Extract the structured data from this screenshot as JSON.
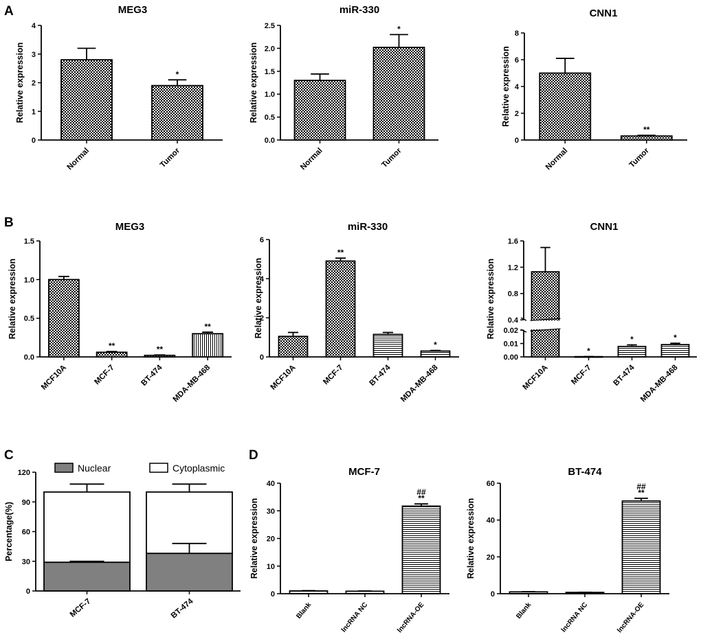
{
  "panel_labels": [
    "A",
    "B",
    "C",
    "D"
  ],
  "chart_data": [
    {
      "id": "a1",
      "type": "bar",
      "title": "MEG3",
      "ylabel": "Relative expression",
      "ylim": [
        0,
        4
      ],
      "yticks": [
        "0",
        "1",
        "2",
        "3",
        "4"
      ],
      "categories": [
        "Normal",
        "Tumor"
      ],
      "values": [
        2.8,
        1.9
      ],
      "errors": [
        0.4,
        0.2
      ],
      "labels": [
        "",
        "*"
      ],
      "fills": [
        "check",
        "check"
      ]
    },
    {
      "id": "a2",
      "type": "bar",
      "title": "miR-330",
      "ylabel": "Relative expression",
      "ylim": [
        0,
        2.5
      ],
      "yticks": [
        "0.0",
        "0.5",
        "1.0",
        "1.5",
        "2.0",
        "2.5"
      ],
      "categories": [
        "Normal",
        "Tumor"
      ],
      "values": [
        1.3,
        2.02
      ],
      "errors": [
        0.14,
        0.28
      ],
      "labels": [
        "",
        "*"
      ],
      "fills": [
        "check",
        "check"
      ]
    },
    {
      "id": "a3",
      "type": "bar",
      "title": "CNN1",
      "ylabel": "Relative expression",
      "ylim": [
        0,
        8
      ],
      "yticks": [
        "0",
        "2",
        "4",
        "6",
        "8"
      ],
      "categories": [
        "Normal",
        "Tumor"
      ],
      "values": [
        5.0,
        0.3
      ],
      "errors": [
        1.1,
        0.05
      ],
      "labels": [
        "",
        "**"
      ],
      "fills": [
        "check",
        "check"
      ]
    },
    {
      "id": "b1",
      "type": "bar",
      "title": "MEG3",
      "ylabel": "Relative expression",
      "ylim": [
        0,
        1.5
      ],
      "yticks": [
        "0.0",
        "0.5",
        "1.0",
        "1.5"
      ],
      "categories": [
        "MCF10A",
        "MCF-7",
        "BT-474",
        "MDA-MB-468"
      ],
      "values": [
        1.0,
        0.06,
        0.02,
        0.3
      ],
      "errors": [
        0.04,
        0.01,
        0.005,
        0.02
      ],
      "labels": [
        "",
        "**",
        "**",
        "**"
      ],
      "fills": [
        "check",
        "check",
        "check",
        "vline"
      ]
    },
    {
      "id": "b2",
      "type": "bar",
      "title": "miR-330",
      "ylabel": "Relative expression",
      "ylim": [
        0,
        6
      ],
      "yticks": [
        "0",
        "2",
        "4",
        "6"
      ],
      "categories": [
        "MCF10A",
        "MCF-7",
        "BT-474",
        "MDA-MB-468"
      ],
      "values": [
        1.05,
        4.9,
        1.15,
        0.3
      ],
      "errors": [
        0.2,
        0.15,
        0.1,
        0.03
      ],
      "labels": [
        "",
        "**",
        "",
        "*"
      ],
      "fills": [
        "check",
        "check",
        "hline",
        "hline"
      ]
    },
    {
      "id": "b3",
      "type": "bar",
      "title": "CNN1",
      "ylabel": "Relative expression",
      "axis_break": true,
      "lower_ylim": [
        0,
        0.02
      ],
      "lower_yticks": [
        "0.00",
        "0.01",
        "0.02"
      ],
      "upper_ylim": [
        0.4,
        1.6
      ],
      "upper_yticks": [
        "0.4",
        "0.8",
        "1.2",
        "1.6"
      ],
      "categories": [
        "MCF10A",
        "MCF-7",
        "BT-474",
        "MDA-MB-468"
      ],
      "values": [
        1.13,
        0.0002,
        0.0078,
        0.0092
      ],
      "errors": [
        0.37,
        0.0001,
        0.0012,
        0.001
      ],
      "labels": [
        "",
        "*",
        "*",
        "*"
      ],
      "fills": [
        "check",
        "check",
        "hline",
        "hline"
      ]
    },
    {
      "id": "c",
      "type": "bar",
      "subtype": "stacked",
      "ylabel": "Percentage(%)",
      "ylim": [
        0,
        120
      ],
      "yticks": [
        "0",
        "30",
        "60",
        "90",
        "120"
      ],
      "categories": [
        "MCF-7",
        "BT-474"
      ],
      "series": [
        {
          "name": "Nuclear",
          "values": [
            29,
            38
          ],
          "errors": [
            1,
            10
          ],
          "color": "#808080"
        },
        {
          "name": "Cytoplasmic",
          "values": [
            71,
            62
          ],
          "errors": [
            8,
            8
          ],
          "color": "#ffffff"
        }
      ]
    },
    {
      "id": "d1",
      "type": "bar",
      "title": "MCF-7",
      "ylabel": "Relative expression",
      "ylim": [
        0,
        40
      ],
      "yticks": [
        "0",
        "10",
        "20",
        "30",
        "40"
      ],
      "categories": [
        "Blank",
        "lncRNA NC",
        "lncRNA-OE"
      ],
      "values": [
        1.0,
        0.9,
        31.7
      ],
      "errors": [
        0.1,
        0.1,
        0.8
      ],
      "labels": [
        "",
        "",
        "**"
      ],
      "labels2": [
        "",
        "",
        "##"
      ],
      "fills": [
        "hline",
        "hline",
        "hline"
      ]
    },
    {
      "id": "d2",
      "type": "bar",
      "title": "BT-474",
      "ylabel": "Relative expression",
      "ylim": [
        0,
        60
      ],
      "yticks": [
        "0",
        "20",
        "40",
        "60"
      ],
      "categories": [
        "Blank",
        "lncRNA NC",
        "lncRNA-OE"
      ],
      "values": [
        1.0,
        0.7,
        50.3
      ],
      "errors": [
        0.1,
        0.1,
        1.5
      ],
      "labels": [
        "",
        "",
        "**"
      ],
      "labels2": [
        "",
        "",
        "##"
      ],
      "fills": [
        "hline",
        "hline",
        "hline"
      ]
    }
  ]
}
